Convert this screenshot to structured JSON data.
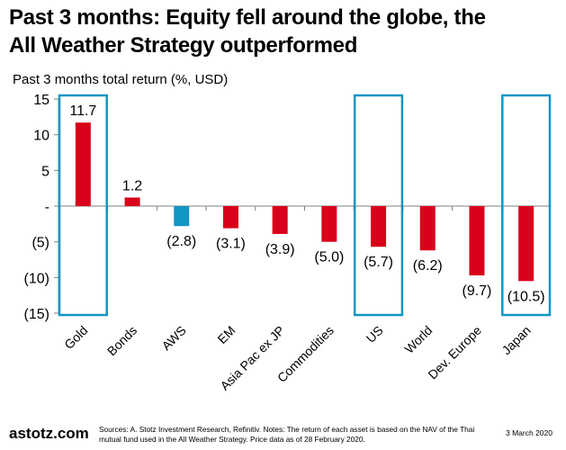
{
  "title_line1": "Past 3 months: Equity fell around the globe, the",
  "title_line2": "All Weather Strategy outperformed",
  "footer": {
    "brand": "astotz.com",
    "sources": "Sources: A. Stotz Investment Research, Refinitiv. Notes: The return of each asset is based on the NAV of the Thai mutual fund used in the All Weather Strategy. Price data as of 28 February 2020.",
    "date": "3 March 2020"
  },
  "chart_data": {
    "type": "bar",
    "ylabel": "Past 3 months total return (%, USD)",
    "ylim": [
      -15,
      15
    ],
    "yticks": [
      15,
      10,
      5,
      0,
      -5,
      -10,
      -15
    ],
    "ytick_labels": [
      "15",
      "10",
      "5",
      "-",
      "(5)",
      "(10)",
      "(15)"
    ],
    "categories": [
      "Gold",
      "Bonds",
      "AWS",
      "EM",
      "Asia Pac ex JP",
      "Commodities",
      "US",
      "World",
      "Dev. Europe",
      "Japan"
    ],
    "values": [
      11.7,
      1.2,
      -2.8,
      -3.1,
      -3.9,
      -5.0,
      -5.7,
      -6.2,
      -9.7,
      -10.5
    ],
    "data_labels": [
      "11.7",
      "1.2",
      "(2.8)",
      "(3.1)",
      "(3.9)",
      "(5.0)",
      "(5.7)",
      "(6.2)",
      "(9.7)",
      "(10.5)"
    ],
    "highlighted_categories": [
      "Gold",
      "US",
      "Japan"
    ],
    "colors": {
      "default": "#d9001b",
      "AWS": "#1296c4",
      "highlight_box": "#1296c4",
      "axis": "#7f7f7f"
    },
    "grid": false
  }
}
